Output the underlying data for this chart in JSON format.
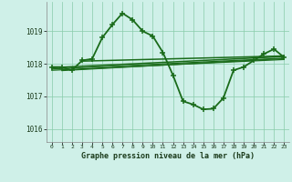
{
  "title": "Graphe pression niveau de la mer (hPa)",
  "background_color": "#cff0e8",
  "grid_color": "#88ccaa",
  "line_color": "#1a6b1a",
  "xlim": [
    -0.5,
    23.5
  ],
  "ylim": [
    1015.6,
    1019.9
  ],
  "yticks": [
    1016,
    1017,
    1018,
    1019
  ],
  "xticks": [
    0,
    1,
    2,
    3,
    4,
    5,
    6,
    7,
    8,
    9,
    10,
    11,
    12,
    13,
    14,
    15,
    16,
    17,
    18,
    19,
    20,
    21,
    22,
    23
  ],
  "series": {
    "main": {
      "x": [
        0,
        1,
        2,
        3,
        4,
        5,
        6,
        7,
        8,
        9,
        10,
        11,
        12,
        13,
        14,
        15,
        16,
        17,
        18,
        19,
        20,
        21,
        22,
        23
      ],
      "y": [
        1017.9,
        1017.9,
        1017.8,
        1018.1,
        1018.15,
        1018.8,
        1019.2,
        1019.55,
        1019.35,
        1019.0,
        1018.85,
        1018.35,
        1017.65,
        1016.85,
        1016.75,
        1016.6,
        1016.62,
        1016.95,
        1017.8,
        1017.9,
        1018.1,
        1018.3,
        1018.45,
        1018.2
      ],
      "marker": "+",
      "linewidth": 1.3,
      "markersize": 4
    },
    "line1": {
      "x": [
        0,
        23
      ],
      "y": [
        1017.88,
        1018.22
      ],
      "linewidth": 1.1
    },
    "line2": {
      "x": [
        0,
        23
      ],
      "y": [
        1017.8,
        1018.13
      ],
      "linewidth": 0.9
    },
    "line3": {
      "x": [
        0,
        23
      ],
      "y": [
        1017.84,
        1018.17
      ],
      "linewidth": 0.9
    },
    "line4": {
      "x": [
        1,
        23
      ],
      "y": [
        1017.79,
        1018.16
      ],
      "linewidth": 0.9
    },
    "line5": {
      "x": [
        3,
        23
      ],
      "y": [
        1018.08,
        1018.24
      ],
      "linewidth": 1.1
    }
  }
}
